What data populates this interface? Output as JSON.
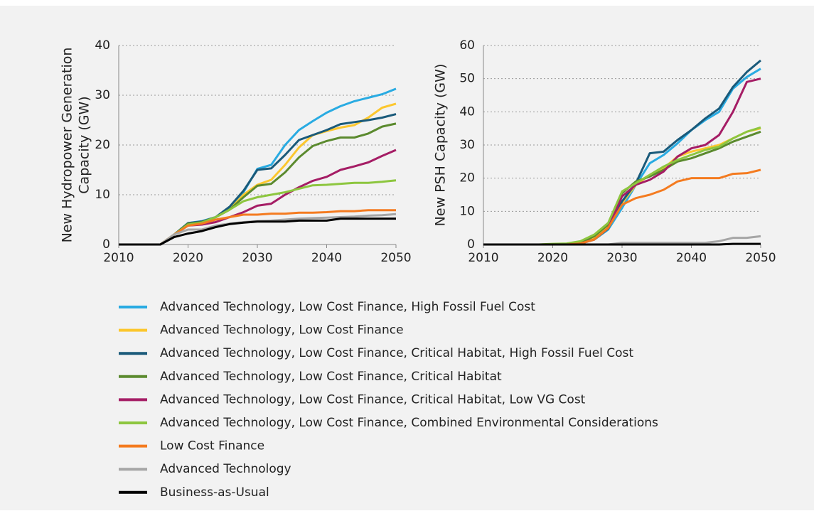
{
  "chart_data": [
    {
      "type": "line",
      "ylabel": [
        "New Hydropower Generation",
        "Capacity (GW)"
      ],
      "x": [
        2010,
        2012,
        2014,
        2016,
        2018,
        2020,
        2022,
        2024,
        2026,
        2028,
        2030,
        2032,
        2034,
        2036,
        2038,
        2040,
        2042,
        2044,
        2046,
        2048,
        2050
      ],
      "xlim": [
        2010,
        2050
      ],
      "xticks": [
        2010,
        2020,
        2030,
        2040,
        2050
      ],
      "ylim": [
        0,
        40
      ],
      "yticks": [
        0,
        10,
        20,
        30,
        40
      ],
      "grid": true,
      "series": [
        {
          "color": "#29abe2",
          "values": [
            0,
            0,
            0,
            0,
            2,
            4.3,
            4.7,
            5.5,
            7.5,
            10.5,
            15.2,
            16,
            20,
            23,
            24.8,
            26.5,
            27.8,
            28.8,
            29.5,
            30.2,
            31.3
          ]
        },
        {
          "color": "#fcc72e",
          "values": [
            0,
            0,
            0,
            0,
            2,
            4.2,
            4.6,
            5.5,
            7,
            10,
            12,
            13,
            16,
            19.5,
            22,
            22.8,
            23.5,
            24,
            25.5,
            27.5,
            28.3
          ]
        },
        {
          "color": "#1a5a7a",
          "values": [
            0,
            0,
            0,
            0,
            2,
            4.3,
            4.6,
            5.5,
            7.6,
            10.8,
            15,
            15.3,
            18,
            21,
            22,
            23,
            24.2,
            24.6,
            25,
            25.5,
            26.2
          ]
        },
        {
          "color": "#5b8a2e",
          "values": [
            0,
            0,
            0,
            0,
            2,
            4.2,
            4.5,
            5.5,
            7,
            9.5,
            11.8,
            12.2,
            14.5,
            17.5,
            19.8,
            20.8,
            21.5,
            21.5,
            22.3,
            23.7,
            24.3
          ]
        },
        {
          "color": "#a51d65",
          "values": [
            0,
            0,
            0,
            0,
            2,
            3.8,
            4,
            4.5,
            5.5,
            6.5,
            7.8,
            8.2,
            10,
            11.5,
            12.8,
            13.6,
            15,
            15.7,
            16.5,
            17.8,
            19
          ]
        },
        {
          "color": "#8dc63f",
          "values": [
            0,
            0,
            0,
            0,
            2,
            4,
            4.4,
            5.5,
            7,
            8.7,
            9.5,
            10,
            10.5,
            11.2,
            11.9,
            12,
            12.2,
            12.4,
            12.4,
            12.6,
            12.9
          ]
        },
        {
          "color": "#f47b20",
          "values": [
            0,
            0,
            0,
            0,
            2,
            3.8,
            4.2,
            5,
            5.5,
            6,
            6,
            6.2,
            6.2,
            6.4,
            6.4,
            6.5,
            6.7,
            6.7,
            6.9,
            6.9,
            6.9
          ]
        },
        {
          "color": "#a6a6a6",
          "values": [
            0,
            0,
            0,
            0,
            2,
            3,
            3,
            3.8,
            4.2,
            4.5,
            4.7,
            4.8,
            5,
            5.2,
            5.3,
            5.4,
            5.5,
            5.6,
            5.8,
            5.9,
            6.1
          ]
        },
        {
          "color": "#000000",
          "values": [
            0,
            0,
            0,
            0,
            1.5,
            2.2,
            2.7,
            3.5,
            4.1,
            4.4,
            4.6,
            4.6,
            4.6,
            4.8,
            4.8,
            4.8,
            5.2,
            5.2,
            5.2,
            5.2,
            5.2
          ]
        }
      ]
    },
    {
      "type": "line",
      "ylabel": [
        "New PSH Capacity (GW)"
      ],
      "x": [
        2010,
        2012,
        2014,
        2016,
        2018,
        2020,
        2022,
        2024,
        2026,
        2028,
        2030,
        2032,
        2034,
        2036,
        2038,
        2040,
        2042,
        2044,
        2046,
        2048,
        2050
      ],
      "xlim": [
        2010,
        2050
      ],
      "xticks": [
        2010,
        2020,
        2030,
        2040,
        2050
      ],
      "ylim": [
        0,
        60
      ],
      "yticks": [
        0,
        10,
        20,
        30,
        40,
        50,
        60
      ],
      "grid": true,
      "series": [
        {
          "color": "#29abe2",
          "values": [
            0,
            0,
            0,
            0,
            0,
            0,
            0,
            0.3,
            1.5,
            4.5,
            11,
            18,
            24.5,
            27,
            30.5,
            34.5,
            37.5,
            40,
            47,
            50.5,
            53
          ]
        },
        {
          "color": "#fcc72e",
          "values": [
            0,
            0,
            0,
            0,
            0,
            0,
            0,
            0.5,
            2,
            5.5,
            12.5,
            18,
            21,
            23,
            26.5,
            28,
            29,
            30,
            32,
            34,
            35
          ]
        },
        {
          "color": "#1a5a7a",
          "values": [
            0,
            0,
            0,
            0,
            0,
            0,
            0,
            0.3,
            1.5,
            4.8,
            13,
            18.5,
            27.5,
            28,
            31.5,
            34.5,
            38,
            41,
            47.5,
            52,
            55.5
          ]
        },
        {
          "color": "#5b8a2e",
          "values": [
            0,
            0,
            0,
            0,
            0,
            0,
            0,
            0.5,
            2.5,
            6,
            15.5,
            19,
            20.5,
            22.5,
            25,
            26,
            27.5,
            29,
            31,
            32.5,
            34
          ]
        },
        {
          "color": "#a51d65",
          "values": [
            0,
            0,
            0,
            0,
            0,
            0,
            0,
            0.3,
            1.5,
            5,
            14.5,
            18,
            19.5,
            22,
            26.5,
            29,
            30,
            33,
            40,
            49,
            50
          ]
        },
        {
          "color": "#8dc63f",
          "values": [
            0,
            0,
            0,
            0,
            0,
            0.2,
            0.3,
            1,
            3,
            6.5,
            16,
            18.5,
            21,
            23.5,
            25.5,
            27,
            28.5,
            29.5,
            32,
            34,
            35.3
          ]
        },
        {
          "color": "#f47b20",
          "values": [
            0,
            0,
            0,
            0,
            0,
            0,
            0,
            0.3,
            1.5,
            5,
            12,
            14,
            15,
            16.5,
            19,
            20,
            20,
            20,
            21.3,
            21.5,
            22.5
          ]
        },
        {
          "color": "#a6a6a6",
          "values": [
            0,
            0,
            0,
            0,
            0,
            0,
            0,
            0,
            0,
            0,
            0.5,
            0.5,
            0.5,
            0.5,
            0.5,
            0.5,
            0.5,
            1,
            2,
            2,
            2.5
          ]
        },
        {
          "color": "#000000",
          "values": [
            0,
            0,
            0,
            0,
            0,
            0,
            0,
            0,
            0,
            0,
            0,
            0,
            0,
            0,
            0,
            0,
            0,
            0,
            0.2,
            0.2,
            0.2
          ]
        }
      ]
    }
  ],
  "legend": [
    {
      "name": "Advanced Technology, Low Cost Finance, High Fossil Fuel Cost",
      "color": "#29abe2"
    },
    {
      "name": "Advanced Technology, Low Cost Finance",
      "color": "#fcc72e"
    },
    {
      "name": "Advanced Technology, Low Cost Finance, Critical Habitat, High Fossil Fuel Cost",
      "color": "#1a5a7a"
    },
    {
      "name": "Advanced Technology, Low Cost Finance, Critical Habitat",
      "color": "#5b8a2e"
    },
    {
      "name": "Advanced Technology, Low Cost Finance, Critical Habitat, Low VG Cost",
      "color": "#a51d65"
    },
    {
      "name": "Advanced Technology, Low Cost Finance, Combined Environmental Considerations",
      "color": "#8dc63f"
    },
    {
      "name": "Low Cost Finance",
      "color": "#f47b20"
    },
    {
      "name": "Advanced Technology",
      "color": "#a6a6a6"
    },
    {
      "name": "Business-as-Usual",
      "color": "#000000"
    }
  ]
}
